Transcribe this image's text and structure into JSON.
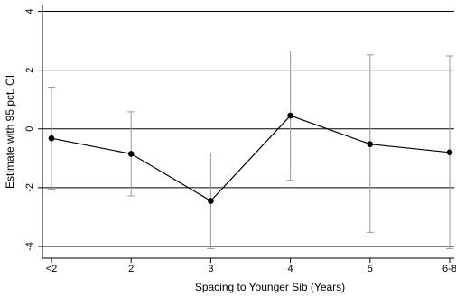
{
  "chart_data": {
    "type": "line",
    "title": "",
    "xlabel": "Spacing to Younger Sib (Years)",
    "ylabel": "Estimate with 95 pct. CI",
    "categories": [
      "<2",
      "2",
      "3",
      "4",
      "5",
      "6-8"
    ],
    "series": [
      {
        "values": [
          -0.32,
          -0.85,
          -2.45,
          0.45,
          -0.52,
          -0.8
        ],
        "ci_lower": [
          -2.05,
          -2.28,
          -4.08,
          -1.75,
          -3.52,
          -4.08
        ],
        "ci_upper": [
          1.42,
          0.58,
          -0.82,
          2.65,
          2.52,
          2.48
        ]
      }
    ],
    "ylim": [
      -4.4,
      4.2
    ],
    "yticks": [
      4,
      2,
      0,
      -2,
      -4
    ],
    "ytick_labels": [
      "4",
      "2",
      "0",
      "-2",
      "-4"
    ],
    "grid": true,
    "legend": "none",
    "colors": {
      "line": "#000000",
      "ci": "#999999",
      "grid": "#000000"
    }
  }
}
